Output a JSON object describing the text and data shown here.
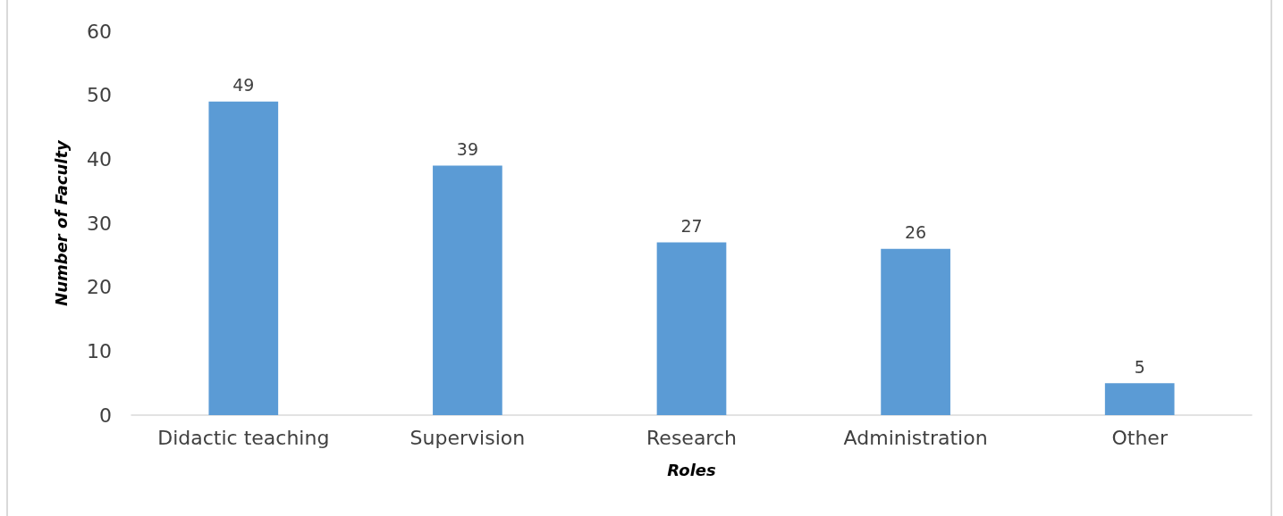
{
  "chart_data": {
    "type": "bar",
    "xlabel": "Roles",
    "ylabel": "Number of Faculty",
    "categories": [
      "Didactic teaching",
      "Supervision",
      "Research",
      "Administration",
      "Other"
    ],
    "values": [
      49,
      39,
      27,
      26,
      5
    ],
    "color": "#5b9bd5",
    "ylim": [
      0,
      60
    ],
    "yticks": [
      0,
      10,
      20,
      30,
      40,
      50,
      60
    ],
    "grid": false,
    "data_labels": true
  }
}
